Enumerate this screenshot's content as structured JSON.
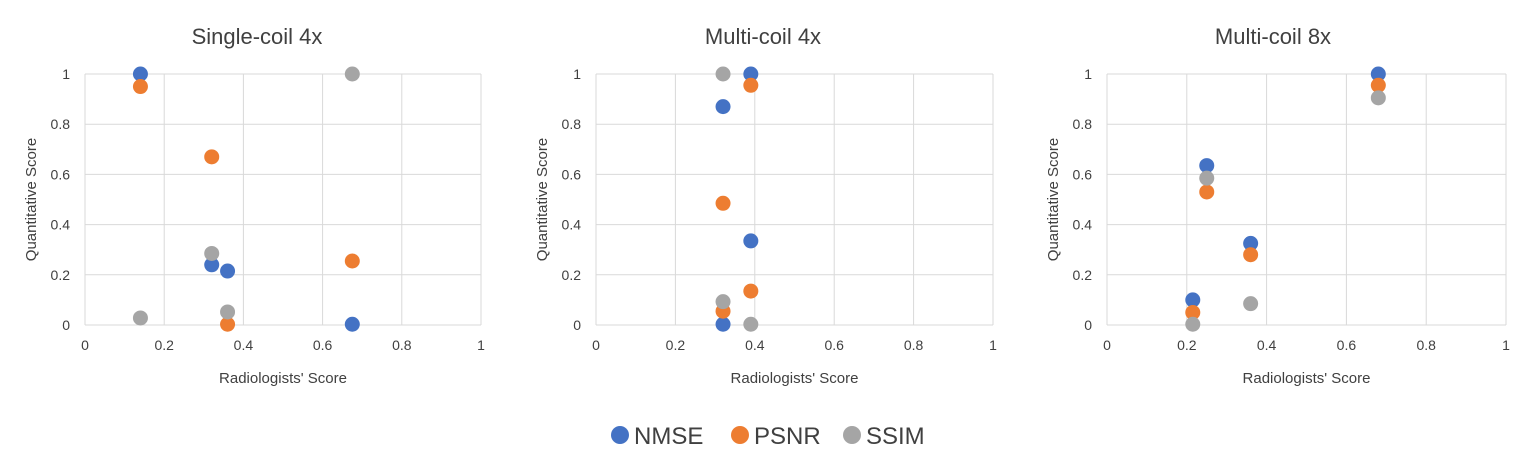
{
  "legend": [
    {
      "name": "NMSE",
      "color": "#4472c4"
    },
    {
      "name": "PSNR",
      "color": "#ed7d31"
    },
    {
      "name": "SSIM",
      "color": "#a5a5a5"
    }
  ],
  "chart_data": [
    {
      "type": "scatter",
      "title": "Single-coil 4x",
      "xlabel": "Radiologists' Score",
      "ylabel": "Quantitative Score",
      "xlim": [
        0,
        1
      ],
      "ylim": [
        0,
        1
      ],
      "xticks": [
        "0",
        "0.2",
        "0.4",
        "0.6",
        "0.8",
        "1"
      ],
      "yticks": [
        "0",
        "0.2",
        "0.4",
        "0.6",
        "0.8",
        "1"
      ],
      "grid": true,
      "series": [
        {
          "name": "NMSE",
          "color": "#4472c4",
          "points": [
            [
              0.14,
              1.0
            ],
            [
              0.32,
              0.24
            ],
            [
              0.36,
              0.215
            ],
            [
              0.675,
              0.003
            ]
          ]
        },
        {
          "name": "PSNR",
          "color": "#ed7d31",
          "points": [
            [
              0.14,
              0.95
            ],
            [
              0.32,
              0.67
            ],
            [
              0.36,
              0.003
            ],
            [
              0.675,
              0.255
            ]
          ]
        },
        {
          "name": "SSIM",
          "color": "#a5a5a5",
          "points": [
            [
              0.14,
              0.028
            ],
            [
              0.32,
              0.285
            ],
            [
              0.36,
              0.052
            ],
            [
              0.675,
              1.0
            ]
          ]
        }
      ]
    },
    {
      "type": "scatter",
      "title": "Multi-coil 4x",
      "xlabel": "Radiologists' Score",
      "ylabel": "Quantitative Score",
      "xlim": [
        0,
        1
      ],
      "ylim": [
        0,
        1
      ],
      "xticks": [
        "0",
        "0.2",
        "0.4",
        "0.6",
        "0.8",
        "1"
      ],
      "yticks": [
        "0",
        "0.2",
        "0.4",
        "0.6",
        "0.8",
        "1"
      ],
      "grid": true,
      "series": [
        {
          "name": "NMSE",
          "color": "#4472c4",
          "points": [
            [
              0.39,
              1.0
            ],
            [
              0.32,
              0.87
            ],
            [
              0.39,
              0.335
            ],
            [
              0.32,
              0.003
            ]
          ]
        },
        {
          "name": "PSNR",
          "color": "#ed7d31",
          "points": [
            [
              0.39,
              0.955
            ],
            [
              0.32,
              0.485
            ],
            [
              0.39,
              0.135
            ],
            [
              0.32,
              0.055
            ]
          ]
        },
        {
          "name": "SSIM",
          "color": "#a5a5a5",
          "points": [
            [
              0.32,
              1.0
            ],
            [
              0.32,
              0.093
            ],
            [
              0.39,
              0.003
            ]
          ]
        }
      ]
    },
    {
      "type": "scatter",
      "title": "Multi-coil 8x",
      "xlabel": "Radiologists' Score",
      "ylabel": "Quantitative Score",
      "xlim": [
        0,
        1
      ],
      "ylim": [
        0,
        1
      ],
      "xticks": [
        "0",
        "0.2",
        "0.4",
        "0.6",
        "0.8",
        "1"
      ],
      "yticks": [
        "0",
        "0.2",
        "0.4",
        "0.6",
        "0.8",
        "1"
      ],
      "grid": true,
      "series": [
        {
          "name": "NMSE",
          "color": "#4472c4",
          "points": [
            [
              0.68,
              1.0
            ],
            [
              0.25,
              0.635
            ],
            [
              0.36,
              0.325
            ],
            [
              0.215,
              0.1
            ]
          ]
        },
        {
          "name": "PSNR",
          "color": "#ed7d31",
          "points": [
            [
              0.68,
              0.955
            ],
            [
              0.25,
              0.53
            ],
            [
              0.36,
              0.28
            ],
            [
              0.215,
              0.05
            ]
          ]
        },
        {
          "name": "SSIM",
          "color": "#a5a5a5",
          "points": [
            [
              0.68,
              0.905
            ],
            [
              0.25,
              0.585
            ],
            [
              0.36,
              0.085
            ],
            [
              0.215,
              0.003
            ]
          ]
        }
      ]
    }
  ]
}
